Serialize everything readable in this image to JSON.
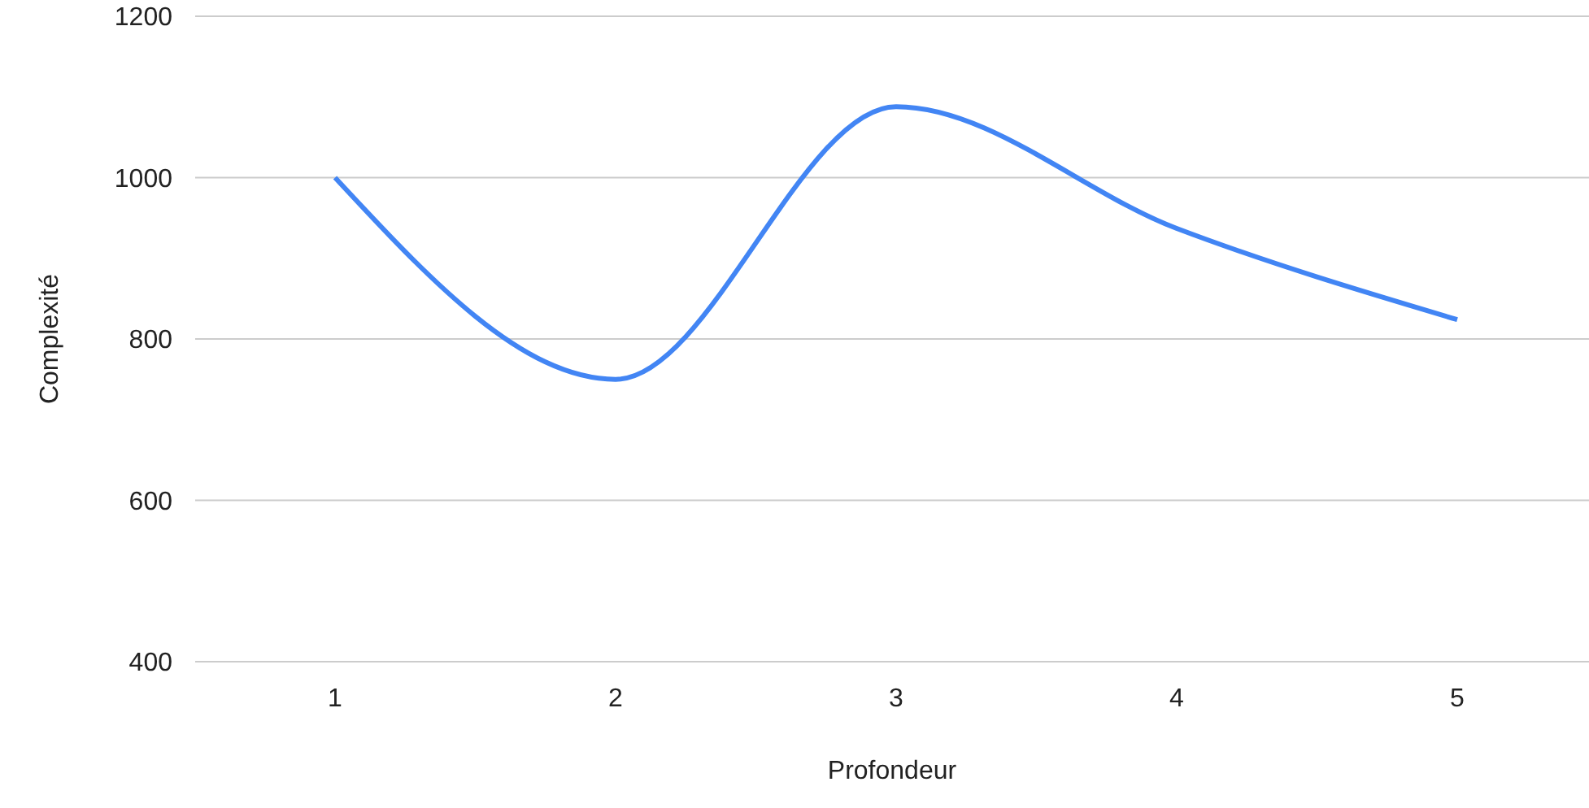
{
  "chart_data": {
    "type": "line",
    "xlabel": "Profondeur",
    "ylabel": "Complexité",
    "categories": [
      "1",
      "2",
      "3",
      "4",
      "5"
    ],
    "series": [
      {
        "color": "#4285f4",
        "values": [
          1000,
          750,
          1088,
          937,
          824
        ]
      }
    ],
    "ylim": [
      400,
      1200
    ],
    "yticks": [
      400,
      600,
      800,
      1000,
      1200
    ],
    "grid": "y",
    "marker": "none"
  }
}
